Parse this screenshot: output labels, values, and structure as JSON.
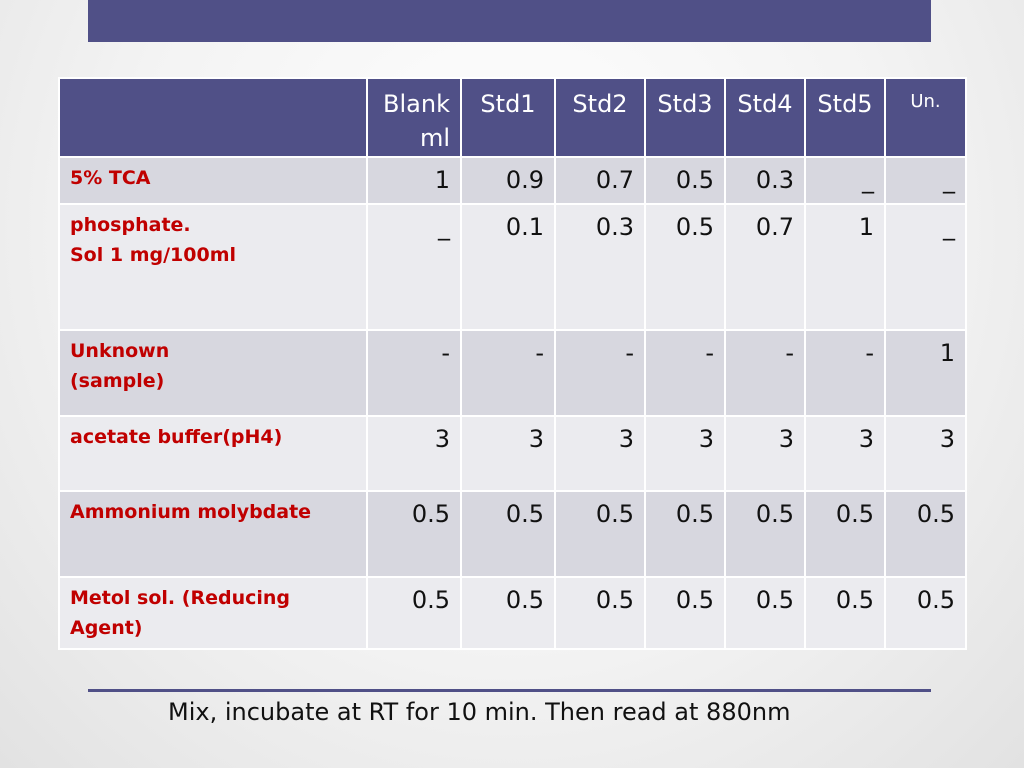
{
  "table": {
    "header": [
      "",
      "Blank ml",
      "Std1",
      "Std2",
      "Std3",
      "Std4",
      "Std5",
      "Un."
    ],
    "rows": [
      {
        "label": "5% TCA",
        "values": [
          "1",
          "0.9",
          "0.7",
          "0.5",
          "0.3",
          "_",
          "_"
        ]
      },
      {
        "label": "phosphate.\nSol 1 mg/100ml",
        "values": [
          "_",
          "0.1",
          "0.3",
          "0.5",
          "0.7",
          "1",
          "_"
        ]
      },
      {
        "label": "Unknown\n(sample)",
        "values": [
          "-",
          "-",
          "-",
          "-",
          "-",
          "-",
          "1"
        ]
      },
      {
        "label": "acetate buffer(pH4)",
        "values": [
          "3",
          "3",
          "3",
          "3",
          "3",
          "3",
          "3"
        ]
      },
      {
        "label": "Ammonium molybdate",
        "values": [
          "0.5",
          "0.5",
          "0.5",
          "0.5",
          "0.5",
          "0.5",
          "0.5"
        ]
      },
      {
        "label": "Metol sol. (Reducing Agent)",
        "values": [
          "0.5",
          "0.5",
          "0.5",
          "0.5",
          "0.5",
          "0.5",
          "0.5"
        ]
      }
    ]
  },
  "footer_note": "Mix, incubate at RT for 10 min. Then read at 880nm",
  "colors": {
    "header_bg": "#505087",
    "label_text": "#c00000",
    "row_shade": "#d7d7df",
    "row_light": "#ebebef"
  }
}
